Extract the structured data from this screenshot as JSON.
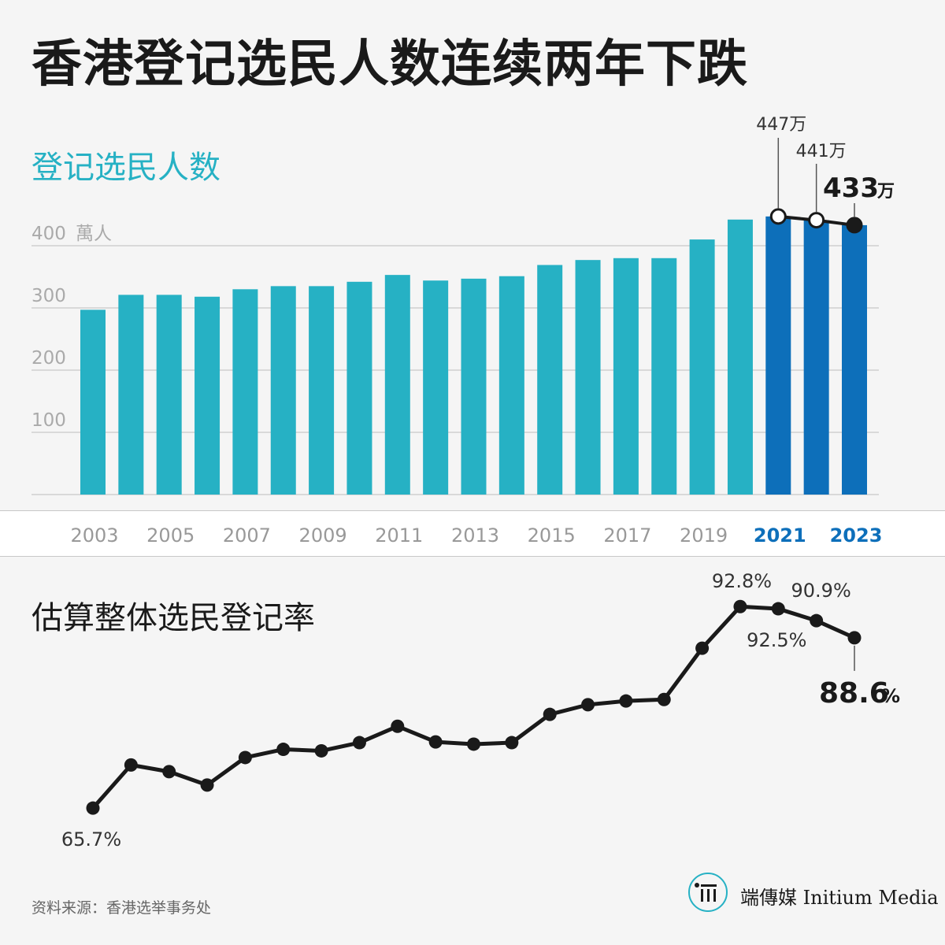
{
  "title": "香港登记选民人数连续两年下跌",
  "chart_data": [
    {
      "type": "bar",
      "title": "登记选民人数",
      "ylabel": "萬人",
      "ylim": [
        0,
        400
      ],
      "yticks": [
        100,
        200,
        300,
        400
      ],
      "categories": [
        "2003",
        "2004",
        "2005",
        "2006",
        "2007",
        "2008",
        "2009",
        "2010",
        "2011",
        "2012",
        "2013",
        "2014",
        "2015",
        "2016",
        "2017",
        "2018",
        "2019",
        "2020",
        "2021",
        "2022",
        "2023"
      ],
      "x_tick_labels": [
        "2003",
        "2005",
        "2007",
        "2009",
        "2011",
        "2013",
        "2015",
        "2017",
        "2019",
        "2021",
        "2023"
      ],
      "values": [
        297,
        321,
        321,
        318,
        330,
        335,
        335,
        342,
        353,
        344,
        347,
        351,
        369,
        377,
        380,
        380,
        410,
        442,
        447,
        441,
        433
      ],
      "highlight_years": [
        "2021",
        "2022",
        "2023"
      ],
      "annotations": [
        {
          "year": "2021",
          "label": "447万"
        },
        {
          "year": "2022",
          "label": "441万"
        },
        {
          "year": "2023",
          "label": "433",
          "unit": "万"
        }
      ],
      "colors": {
        "bar": "#26b1c4",
        "highlight": "#0d6fba",
        "grid": "#d9d9d9"
      }
    },
    {
      "type": "line",
      "title": "估算整体选民登记率",
      "x": [
        "2003",
        "2004",
        "2005",
        "2006",
        "2007",
        "2008",
        "2009",
        "2010",
        "2011",
        "2012",
        "2013",
        "2014",
        "2015",
        "2016",
        "2017",
        "2018",
        "2019",
        "2020",
        "2021",
        "2022",
        "2023"
      ],
      "values": [
        65.7,
        71.5,
        70.6,
        68.8,
        72.5,
        73.6,
        73.4,
        74.5,
        76.7,
        74.6,
        74.3,
        74.5,
        78.3,
        79.6,
        80.1,
        80.3,
        87.2,
        92.8,
        92.5,
        90.9,
        88.6
      ],
      "unit": "%",
      "ylim": [
        60,
        96
      ],
      "labels": [
        {
          "year": "2003",
          "text": "65.7%"
        },
        {
          "year": "2020",
          "text": "92.8%"
        },
        {
          "year": "2021",
          "text": "92.5%"
        },
        {
          "year": "2022",
          "text": "90.9%"
        },
        {
          "year": "2023",
          "text": "88.6",
          "unit": "%"
        }
      ],
      "colors": {
        "line": "#1a1a1a"
      }
    }
  ],
  "source": "资料来源：香港选举事务处",
  "brand": "端傳媒 Initium Media"
}
